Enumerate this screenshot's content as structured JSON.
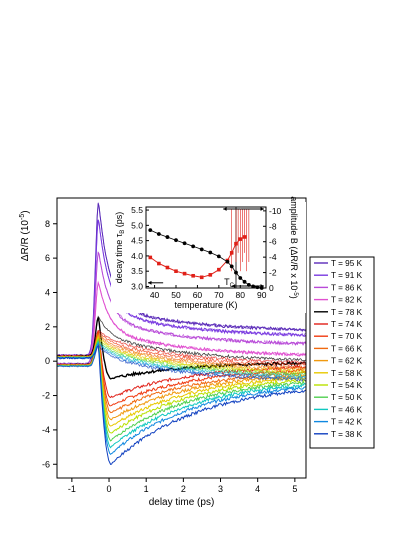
{
  "chart_data": [
    {
      "type": "line",
      "xlabel": "delay time (ps)",
      "ylabel": "ΔR/R (10",
      "ylabel_exp": "-5",
      "ylabel_close": ")",
      "xlim": [
        -1.4,
        5.3
      ],
      "ylim": [
        -6.8,
        9.5
      ],
      "xticks": [
        -1,
        0,
        1,
        2,
        3,
        4,
        5
      ],
      "yticks": [
        -6,
        -4,
        -2,
        0,
        2,
        4,
        6,
        8
      ],
      "grid": false,
      "legend_position": "right",
      "highlight_series": "T = 78 K",
      "series": [
        {
          "name": "T = 95 K",
          "color": "#5a2ab8",
          "peak": 9.3,
          "tail": 1.7
        },
        {
          "name": "T = 91 K",
          "color": "#7a3ae0",
          "peak": 8.3,
          "tail": 1.4
        },
        {
          "name": "T = 86 K",
          "color": "#b84ad8",
          "peak": 6.4,
          "tail": 0.9
        },
        {
          "name": "T = 82 K",
          "color": "#e050d0",
          "peak": 4.6,
          "tail": 0.25
        },
        {
          "name": "T = 78 K",
          "color": "#000000",
          "peak": 2.6,
          "tail": -0.05
        },
        {
          "name": "T = 74 K",
          "color": "#e02018",
          "peak": 1.8,
          "tail": -0.2
        },
        {
          "name": "T = 70 K",
          "color": "#f03a10",
          "peak": 1.7,
          "tail": -0.35
        },
        {
          "name": "T = 66 K",
          "color": "#f06a10",
          "peak": 1.6,
          "tail": -0.5
        },
        {
          "name": "T = 62 K",
          "color": "#f09a10",
          "peak": 1.5,
          "tail": -0.6
        },
        {
          "name": "T = 58 K",
          "color": "#e8c800",
          "peak": 1.4,
          "tail": -0.7
        },
        {
          "name": "T = 54 K",
          "color": "#b8e000",
          "peak": 1.3,
          "tail": -0.8
        },
        {
          "name": "T = 50 K",
          "color": "#50d050",
          "peak": 1.2,
          "tail": -0.9
        },
        {
          "name": "T = 46 K",
          "color": "#10c8c0",
          "peak": 1.1,
          "tail": -1.0
        },
        {
          "name": "T = 42 K",
          "color": "#1088e0",
          "peak": 1.0,
          "tail": -1.1
        },
        {
          "name": "T = 38 K",
          "color": "#1040c0",
          "peak": 0.9,
          "tail": -1.2
        }
      ],
      "trough_min": [
        null,
        null,
        null,
        null,
        -1.0,
        -2.1,
        -2.6,
        -3.0,
        -3.4,
        -3.8,
        -4.2,
        -4.6,
        -5.0,
        -5.4,
        -6.0
      ]
    },
    {
      "type": "scatter",
      "xlabel": "temperature (K)",
      "ylabel_left": "decay time τ",
      "ylabel_left_sub": "B",
      "ylabel_left_unit": " (ps)",
      "ylabel_right": "amplitude B (ΔR/R x 10",
      "ylabel_right_exp": "-5",
      "ylabel_right_close": ")",
      "xlim": [
        36,
        92
      ],
      "ylim_left": [
        2.95,
        5.6
      ],
      "ylim_right": [
        0,
        -10.5
      ],
      "xticks": [
        40,
        50,
        60,
        70,
        80,
        90
      ],
      "yticks_left": [
        3.0,
        3.5,
        4.0,
        4.5,
        5.0,
        5.5
      ],
      "yticks_right": [
        0,
        -2,
        -4,
        -6,
        -8,
        -10
      ],
      "tc_label": "T",
      "tc_sub": "C",
      "tc_value": 78,
      "amplitude": {
        "color": "#000000",
        "x": [
          38,
          42,
          46,
          50,
          54,
          58,
          62,
          66,
          70,
          74,
          76,
          78,
          80,
          82,
          84,
          86,
          88,
          90
        ],
        "y": [
          -7.5,
          -7.0,
          -6.6,
          -6.2,
          -5.8,
          -5.4,
          -5.0,
          -4.6,
          -4.1,
          -3.4,
          -2.8,
          -2.0,
          -1.3,
          -0.8,
          -0.4,
          -0.2,
          -0.1,
          0.0
        ]
      },
      "decay_time": {
        "color": "#e02018",
        "x": [
          38,
          42,
          46,
          50,
          54,
          58,
          62,
          66,
          70,
          74,
          76,
          78,
          80,
          82
        ],
        "y": [
          3.95,
          3.75,
          3.62,
          3.5,
          3.42,
          3.35,
          3.3,
          3.38,
          3.55,
          3.85,
          4.1,
          4.4,
          4.55,
          4.62
        ]
      }
    }
  ]
}
